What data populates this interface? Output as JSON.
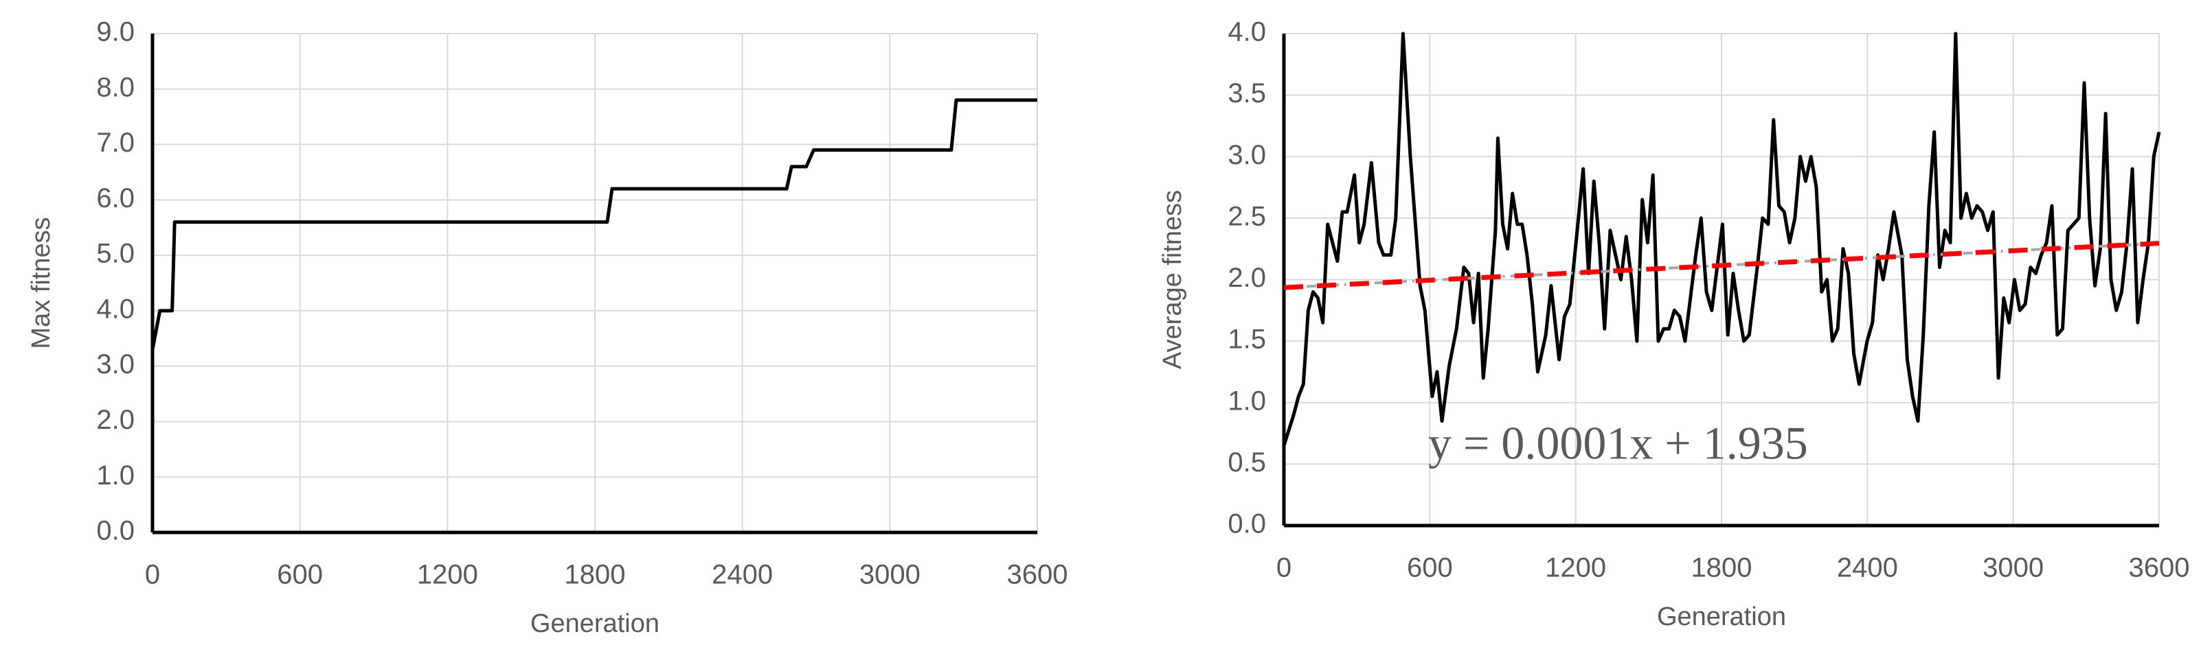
{
  "chart_data": [
    {
      "type": "line",
      "x_label": "Generation",
      "y_label": "Max fitness",
      "xlim": [
        0,
        3600
      ],
      "xticks": [
        0,
        600,
        1200,
        1800,
        2400,
        3000,
        3600
      ],
      "ylim": [
        0,
        9
      ],
      "yticks": [
        {
          "value": 0,
          "label": "0.0"
        },
        {
          "value": 1,
          "label": "1.0"
        },
        {
          "value": 2,
          "label": "2.0"
        },
        {
          "value": 3,
          "label": "3.0"
        },
        {
          "value": 4,
          "label": "4.0"
        },
        {
          "value": 5,
          "label": "5.0"
        },
        {
          "value": 6,
          "label": "6.0"
        },
        {
          "value": 7,
          "label": "7.0"
        },
        {
          "value": 8,
          "label": "8.0"
        },
        {
          "value": 9,
          "label": "9.0"
        }
      ],
      "grid": true,
      "color": "#000000",
      "x": [
        0,
        30,
        80,
        90,
        1850,
        1870,
        2580,
        2600,
        2660,
        2690,
        3250,
        3270,
        3600
      ],
      "values": [
        3.3,
        4.0,
        4.0,
        5.6,
        5.6,
        6.2,
        6.2,
        6.6,
        6.6,
        6.9,
        6.9,
        7.8,
        7.8
      ]
    },
    {
      "type": "line",
      "x_label": "Generation",
      "y_label": "Average fitness",
      "xlim": [
        0,
        3600
      ],
      "xticks": [
        0,
        600,
        1200,
        1800,
        2400,
        3000,
        3600
      ],
      "ylim": [
        0,
        4
      ],
      "yticks": [
        {
          "value": 0,
          "label": "0.0"
        },
        {
          "value": 0.5,
          "label": "0.5"
        },
        {
          "value": 1,
          "label": "1.0"
        },
        {
          "value": 1.5,
          "label": "1.5"
        },
        {
          "value": 2,
          "label": "2.0"
        },
        {
          "value": 2.5,
          "label": "2.5"
        },
        {
          "value": 3,
          "label": "3.0"
        },
        {
          "value": 3.5,
          "label": "3.5"
        },
        {
          "value": 4,
          "label": "4.0"
        }
      ],
      "grid": true,
      "color": "#000000",
      "x": [
        0,
        40,
        60,
        80,
        100,
        120,
        140,
        160,
        180,
        200,
        220,
        240,
        260,
        290,
        310,
        330,
        360,
        390,
        410,
        440,
        460,
        490,
        520,
        560,
        580,
        610,
        630,
        650,
        680,
        710,
        740,
        760,
        780,
        800,
        820,
        840,
        870,
        880,
        900,
        920,
        940,
        960,
        980,
        1000,
        1022,
        1044,
        1077,
        1099,
        1132,
        1154,
        1176,
        1209,
        1231,
        1253,
        1275,
        1297,
        1319,
        1342,
        1364,
        1386,
        1408,
        1430,
        1452,
        1474,
        1496,
        1518,
        1540,
        1562,
        1584,
        1606,
        1628,
        1650,
        1672,
        1694,
        1716,
        1738,
        1760,
        1782,
        1804,
        1826,
        1848,
        1870,
        1892,
        1914,
        1947,
        1969,
        1992,
        2014,
        2036,
        2058,
        2080,
        2102,
        2124,
        2146,
        2168,
        2190,
        2212,
        2234,
        2256,
        2278,
        2300,
        2322,
        2344,
        2366,
        2399,
        2421,
        2443,
        2465,
        2487,
        2509,
        2542,
        2564,
        2586,
        2608,
        2630,
        2653,
        2675,
        2697,
        2719,
        2741,
        2763,
        2785,
        2807,
        2829,
        2851,
        2873,
        2895,
        2917,
        2939,
        2961,
        2983,
        3005,
        3027,
        3049,
        3071,
        3093,
        3115,
        3137,
        3159,
        3181,
        3203,
        3225,
        3248,
        3270,
        3292,
        3314,
        3336,
        3358,
        3380,
        3402,
        3424,
        3446,
        3468,
        3490,
        3512,
        3534,
        3556,
        3578,
        3600
      ],
      "values": [
        0.65,
        0.9,
        1.05,
        1.15,
        1.75,
        1.9,
        1.85,
        1.65,
        2.45,
        2.3,
        2.15,
        2.55,
        2.55,
        2.85,
        2.3,
        2.45,
        2.95,
        2.3,
        2.2,
        2.2,
        2.5,
        4.0,
        3.0,
        1.95,
        1.75,
        1.05,
        1.25,
        0.85,
        1.3,
        1.6,
        2.1,
        2.05,
        1.65,
        2.05,
        1.2,
        1.6,
        2.4,
        3.15,
        2.45,
        2.25,
        2.7,
        2.45,
        2.45,
        2.2,
        1.8,
        1.25,
        1.55,
        1.95,
        1.35,
        1.7,
        1.8,
        2.45,
        2.9,
        2.05,
        2.8,
        2.3,
        1.6,
        2.4,
        2.2,
        2.0,
        2.35,
        2.0,
        1.5,
        2.65,
        2.3,
        2.85,
        1.5,
        1.6,
        1.6,
        1.75,
        1.7,
        1.5,
        1.85,
        2.2,
        2.5,
        1.9,
        1.75,
        2.1,
        2.45,
        1.55,
        2.05,
        1.75,
        1.5,
        1.55,
        2.1,
        2.5,
        2.45,
        3.3,
        2.6,
        2.55,
        2.3,
        2.5,
        3.0,
        2.8,
        3.0,
        2.75,
        1.9,
        2.0,
        1.5,
        1.6,
        2.25,
        2.05,
        1.4,
        1.15,
        1.5,
        1.65,
        2.2,
        2.0,
        2.25,
        2.55,
        2.2,
        1.35,
        1.05,
        0.85,
        1.55,
        2.6,
        3.2,
        2.1,
        2.4,
        2.3,
        4.0,
        2.5,
        2.7,
        2.5,
        2.6,
        2.55,
        2.4,
        2.55,
        1.2,
        1.85,
        1.65,
        2.0,
        1.75,
        1.8,
        2.1,
        2.05,
        2.2,
        2.3,
        2.6,
        1.55,
        1.6,
        2.4,
        2.45,
        2.5,
        3.6,
        2.5,
        1.95,
        2.25,
        3.35,
        2.0,
        1.75,
        1.9,
        2.3,
        2.9,
        1.65,
        2.0,
        2.3,
        3.0,
        3.2
      ],
      "trendline": {
        "slope": 0.0001,
        "intercept": 1.935,
        "label": "y = 0.0001x + 1.935",
        "color": "#ff0000",
        "under_color": "#a6a6a6"
      }
    }
  ]
}
